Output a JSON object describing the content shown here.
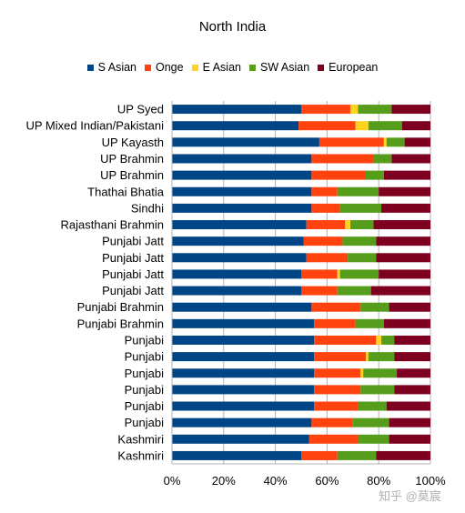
{
  "chart_data": {
    "type": "bar",
    "orientation": "horizontal",
    "stacked": "percent",
    "title": "North India",
    "legend_position": "top",
    "xlim": [
      0,
      100
    ],
    "x_ticks": [
      "0%",
      "20%",
      "40%",
      "60%",
      "80%",
      "100%"
    ],
    "grid": true,
    "categories": [
      "UP Syed",
      "UP Mixed Indian/Pakistani",
      "UP Kayasth",
      "UP Brahmin",
      "UP Brahmin",
      "Thathai Bhatia",
      "Sindhi",
      "Rajasthani Brahmin",
      "Punjabi Jatt",
      "Punjabi Jatt",
      "Punjabi Jatt",
      "Punjabi Jatt",
      "Punjabi Brahmin",
      "Punjabi Brahmin",
      "Punjabi",
      "Punjabi",
      "Punjabi",
      "Punjabi",
      "Punjabi",
      "Punjabi",
      "Kashmiri",
      "Kashmiri"
    ],
    "series": [
      {
        "name": "S Asian",
        "color": "#004586",
        "values": [
          50,
          49,
          57,
          54,
          54,
          54,
          54,
          52,
          51,
          52,
          50,
          50,
          54,
          55,
          55,
          55,
          55,
          55,
          55,
          54,
          53,
          50
        ]
      },
      {
        "name": "Onge",
        "color": "#ff420e",
        "values": [
          19,
          22,
          25,
          24,
          21,
          10,
          11,
          15,
          15,
          16,
          14,
          14,
          19,
          16,
          24,
          20,
          18,
          18,
          17,
          16,
          19,
          14
        ]
      },
      {
        "name": "E Asian",
        "color": "#ffd320",
        "values": [
          3,
          5,
          1,
          0,
          0,
          0,
          0,
          2,
          0,
          0,
          1,
          0,
          0,
          0,
          2,
          1,
          1,
          0,
          0,
          0,
          0,
          0
        ]
      },
      {
        "name": "SW Asian",
        "color": "#579d1c",
        "values": [
          13,
          13,
          7,
          7,
          7,
          16,
          16,
          9,
          13,
          11,
          15,
          13,
          11,
          11,
          5,
          10,
          13,
          13,
          11,
          14,
          12,
          15
        ]
      },
      {
        "name": "European",
        "color": "#7e0021",
        "values": [
          15,
          11,
          10,
          15,
          18,
          20,
          19,
          22,
          21,
          21,
          20,
          23,
          16,
          18,
          14,
          14,
          13,
          14,
          17,
          16,
          16,
          21
        ]
      }
    ]
  },
  "watermark": "知乎 @莫宸"
}
